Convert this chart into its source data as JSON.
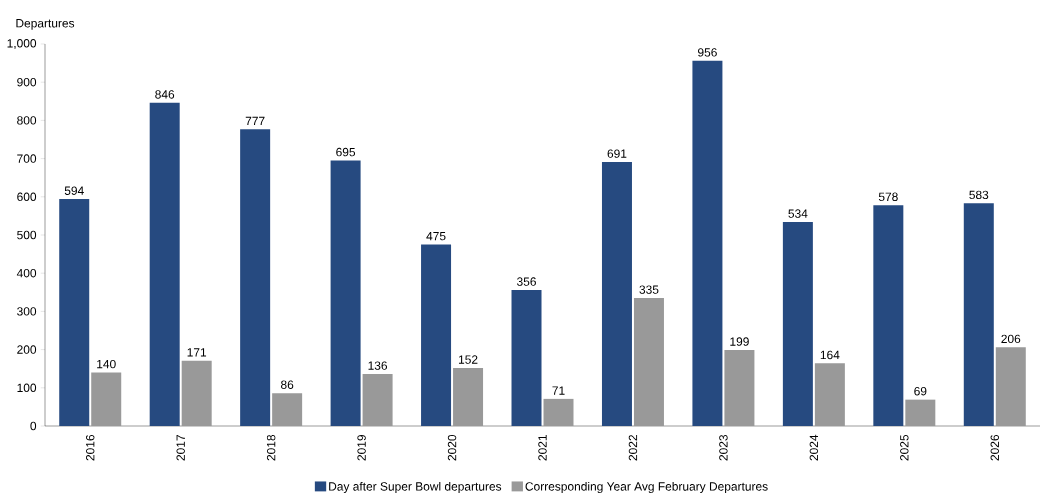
{
  "chart_data": {
    "type": "bar",
    "ylabel": "Departures",
    "categories": [
      "2016",
      "2017",
      "2018",
      "2019",
      "2020",
      "2021",
      "2022",
      "2023",
      "2024",
      "2025",
      "2026"
    ],
    "series": [
      {
        "name": "Day after Super Bowl departures",
        "color": "#264a80",
        "values": [
          594,
          846,
          777,
          695,
          475,
          356,
          691,
          956,
          534,
          578,
          583
        ]
      },
      {
        "name": "Corresponding Year Avg February Departures",
        "color": "#999999",
        "values": [
          140,
          171,
          86,
          136,
          152,
          71,
          335,
          199,
          164,
          69,
          206
        ]
      }
    ],
    "ylim": [
      0,
      1000
    ],
    "yticks": [
      0,
      100,
      200,
      300,
      400,
      500,
      600,
      700,
      800,
      900,
      {
        "value": 1000,
        "label": "1,000"
      }
    ],
    "data_labels": true,
    "legend": "bottom"
  }
}
